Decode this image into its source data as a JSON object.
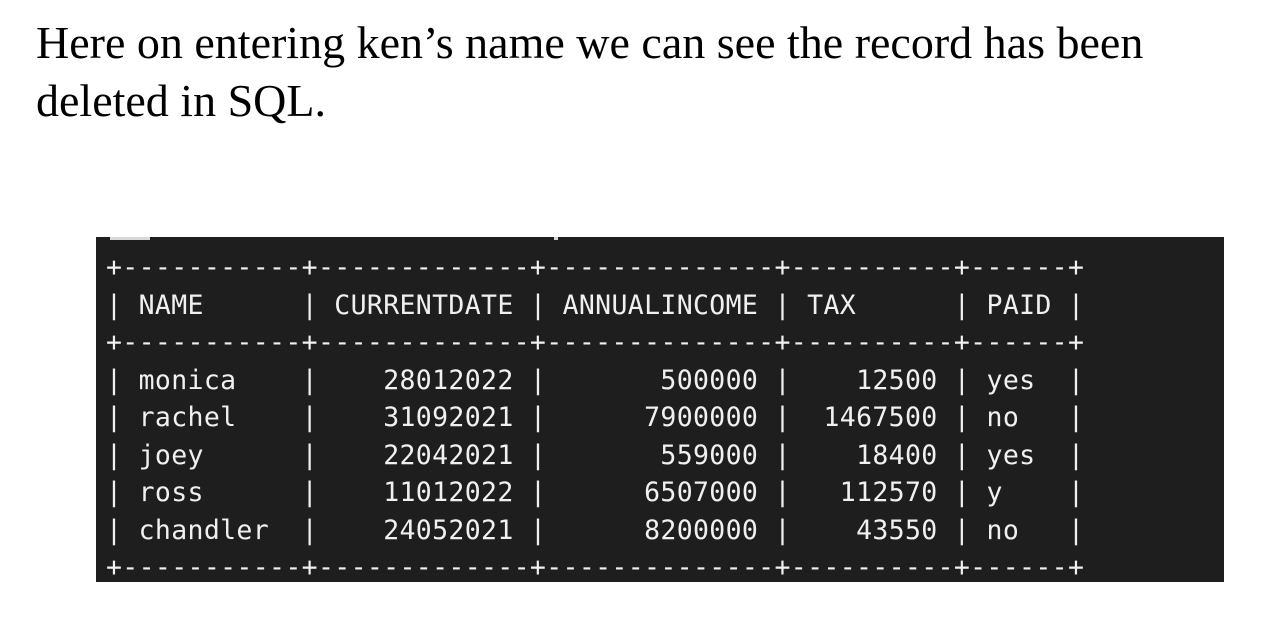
{
  "caption": {
    "text": "Here on entering ken’s name we can see the record has been deleted in SQL."
  },
  "result_table": {
    "columns": [
      {
        "key": "name",
        "label": "NAME",
        "width": 9,
        "align": "left"
      },
      {
        "key": "currentdate",
        "label": "CURRENTDATE",
        "width": 11,
        "align": "right"
      },
      {
        "key": "annualincome",
        "label": "ANNUALINCOME",
        "width": 12,
        "align": "right"
      },
      {
        "key": "tax",
        "label": "TAX",
        "width": 8,
        "align": "right"
      },
      {
        "key": "paid",
        "label": "PAID",
        "width": 4,
        "align": "left"
      }
    ],
    "rows": [
      {
        "name": "monica",
        "currentdate": "28012022",
        "annualincome": "500000",
        "tax": "12500",
        "paid": "yes"
      },
      {
        "name": "rachel",
        "currentdate": "31092021",
        "annualincome": "7900000",
        "tax": "1467500",
        "paid": "no"
      },
      {
        "name": "joey",
        "currentdate": "22042021",
        "annualincome": "559000",
        "tax": "18400",
        "paid": "yes"
      },
      {
        "name": "ross",
        "currentdate": "11012022",
        "annualincome": "6507000",
        "tax": "112570",
        "paid": "y"
      },
      {
        "name": "chandler",
        "currentdate": "24052021",
        "annualincome": "8200000",
        "tax": "43550",
        "paid": "no"
      }
    ]
  }
}
